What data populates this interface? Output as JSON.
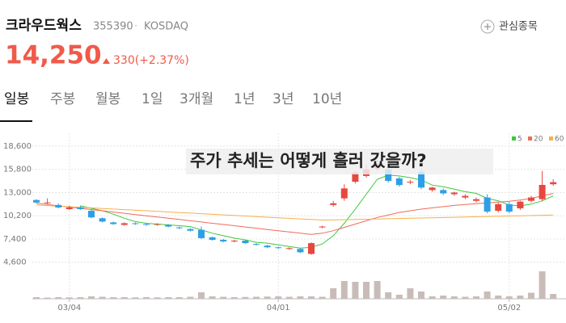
{
  "header": {
    "name": "크라우드웍스",
    "code": "355390",
    "separator": "·",
    "market": "KOSDAQ",
    "price": "14,250",
    "change": "330(+2.37%)",
    "watch_button": "관심종목"
  },
  "tabs": [
    "일봉",
    "주봉",
    "월봉",
    "1일",
    "3개월",
    "1년",
    "3년",
    "10년"
  ],
  "chart_data": {
    "type": "candlestick",
    "title": "주가 추세는 어떻게 흘러 갔을까?",
    "categories": [
      null,
      null,
      null,
      "03/04",
      null,
      null,
      null,
      null,
      null,
      null,
      null,
      null,
      null,
      null,
      null,
      null,
      null,
      null,
      null,
      null,
      null,
      null,
      "04/01",
      null,
      null,
      null,
      null,
      null,
      null,
      null,
      null,
      null,
      null,
      null,
      null,
      null,
      null,
      null,
      null,
      null,
      null,
      null,
      null,
      "05/02",
      null,
      null,
      null,
      null
    ],
    "open": [
      12100,
      11800,
      11500,
      11000,
      11200,
      10800,
      9900,
      9400,
      9100,
      9300,
      9200,
      9100,
      9100,
      8800,
      8600,
      8500,
      7600,
      7300,
      7100,
      7200,
      6800,
      6600,
      6400,
      6200,
      6200,
      5600,
      8800,
      11500,
      12300,
      14300,
      15000,
      15900,
      15800,
      14700,
      14200,
      15500,
      13300,
      13300,
      12800,
      12400,
      12000,
      12400,
      10800,
      11600,
      11100,
      12000,
      12200,
      14000
    ],
    "high": [
      12200,
      12300,
      11700,
      11400,
      11400,
      10900,
      10000,
      9500,
      9400,
      9400,
      9300,
      9300,
      9200,
      8900,
      8700,
      8900,
      7700,
      7400,
      7300,
      7300,
      6900,
      6700,
      6500,
      6400,
      6300,
      7000,
      9000,
      12000,
      14000,
      15600,
      16400,
      17000,
      16000,
      14900,
      14500,
      15900,
      13700,
      13500,
      13100,
      12800,
      12400,
      12800,
      11800,
      11900,
      12000,
      12600,
      15600,
      14600
    ],
    "low": [
      11700,
      11600,
      11100,
      10900,
      10900,
      9900,
      9400,
      9100,
      9000,
      9100,
      9000,
      9000,
      8800,
      8600,
      8300,
      7400,
      7200,
      7000,
      7000,
      6800,
      6600,
      6300,
      6200,
      6100,
      5700,
      5500,
      8700,
      11300,
      12000,
      14100,
      14800,
      15600,
      14200,
      13700,
      14000,
      13400,
      13100,
      12700,
      12600,
      12200,
      11800,
      10500,
      10600,
      10500,
      10900,
      11800,
      12000,
      13800
    ],
    "close": [
      11800,
      11800,
      11200,
      11200,
      11000,
      10000,
      9500,
      9200,
      9300,
      9200,
      9100,
      9200,
      8900,
      8700,
      8400,
      7500,
      7300,
      7100,
      7200,
      6900,
      6700,
      6400,
      6300,
      6300,
      5800,
      6900,
      8900,
      11700,
      13500,
      15400,
      15800,
      16500,
      14400,
      13900,
      14300,
      13600,
      13600,
      12900,
      13000,
      12600,
      12200,
      10700,
      11600,
      10700,
      11900,
      12400,
      13920,
      14250
    ],
    "volume": [
      40,
      30,
      40,
      35,
      40,
      60,
      50,
      40,
      40,
      35,
      40,
      35,
      40,
      40,
      50,
      160,
      60,
      50,
      40,
      45,
      50,
      55,
      60,
      50,
      60,
      60,
      50,
      260,
      440,
      420,
      420,
      440,
      160,
      100,
      260,
      180,
      60,
      80,
      60,
      50,
      60,
      180,
      80,
      60,
      80,
      150,
      680,
      120
    ],
    "ylim": [
      3600,
      20150
    ],
    "yticks": [
      {
        "value": 4600,
        "label": "4,600"
      },
      {
        "value": 7400,
        "label": "7,400"
      },
      {
        "value": 10200,
        "label": "10,200"
      },
      {
        "value": 13000,
        "label": "13,000"
      },
      {
        "value": 15800,
        "label": "15,800"
      },
      {
        "value": 18600,
        "label": "18,600"
      }
    ],
    "volume_lim": [
      0,
      700
    ],
    "up_color": "#e8473f",
    "down_color": "#2e9fe6",
    "volume_color": "#c9bcb8",
    "grid": true,
    "legend": "top-right",
    "series": [
      {
        "name": "5",
        "color": "#3cc83c",
        "values": [
          null,
          null,
          null,
          null,
          11400,
          11100,
          10800,
          10400,
          9900,
          9500,
          9300,
          9200,
          9100,
          9000,
          8900,
          8500,
          8100,
          7800,
          7500,
          7300,
          7000,
          6900,
          6700,
          6500,
          6300,
          6400,
          6800,
          7800,
          9300,
          11000,
          12800,
          14600,
          15100,
          15000,
          14800,
          14500,
          13900,
          13700,
          13400,
          13100,
          12900,
          12300,
          12000,
          11500,
          11400,
          11600,
          12000,
          12600
        ]
      },
      {
        "name": "20",
        "color": "#f06a5a",
        "values": [
          11700,
          11550,
          11400,
          11250,
          11100,
          10950,
          10800,
          10650,
          10500,
          10350,
          10200,
          10050,
          9900,
          9750,
          9600,
          9450,
          9300,
          9150,
          9000,
          8850,
          8700,
          8550,
          8400,
          8250,
          8100,
          7950,
          8100,
          8400,
          8800,
          9200,
          9600,
          10000,
          10300,
          10600,
          10800,
          11000,
          11150,
          11300,
          11450,
          11550,
          11650,
          11750,
          11850,
          11950,
          12100,
          12300,
          12600,
          12900
        ]
      },
      {
        "name": "60",
        "color": "#f5b04a",
        "values": [
          11500,
          11430,
          11360,
          11290,
          11220,
          11150,
          11080,
          11010,
          10940,
          10870,
          10800,
          10730,
          10660,
          10590,
          10520,
          10450,
          10380,
          10310,
          10240,
          10170,
          10100,
          10030,
          9960,
          9890,
          9820,
          9750,
          9680,
          9700,
          9720,
          9750,
          9780,
          9810,
          9840,
          9870,
          9900,
          9930,
          9960,
          9990,
          10020,
          10050,
          10080,
          10110,
          10140,
          10170,
          10200,
          10230,
          10260,
          10300
        ]
      }
    ]
  }
}
